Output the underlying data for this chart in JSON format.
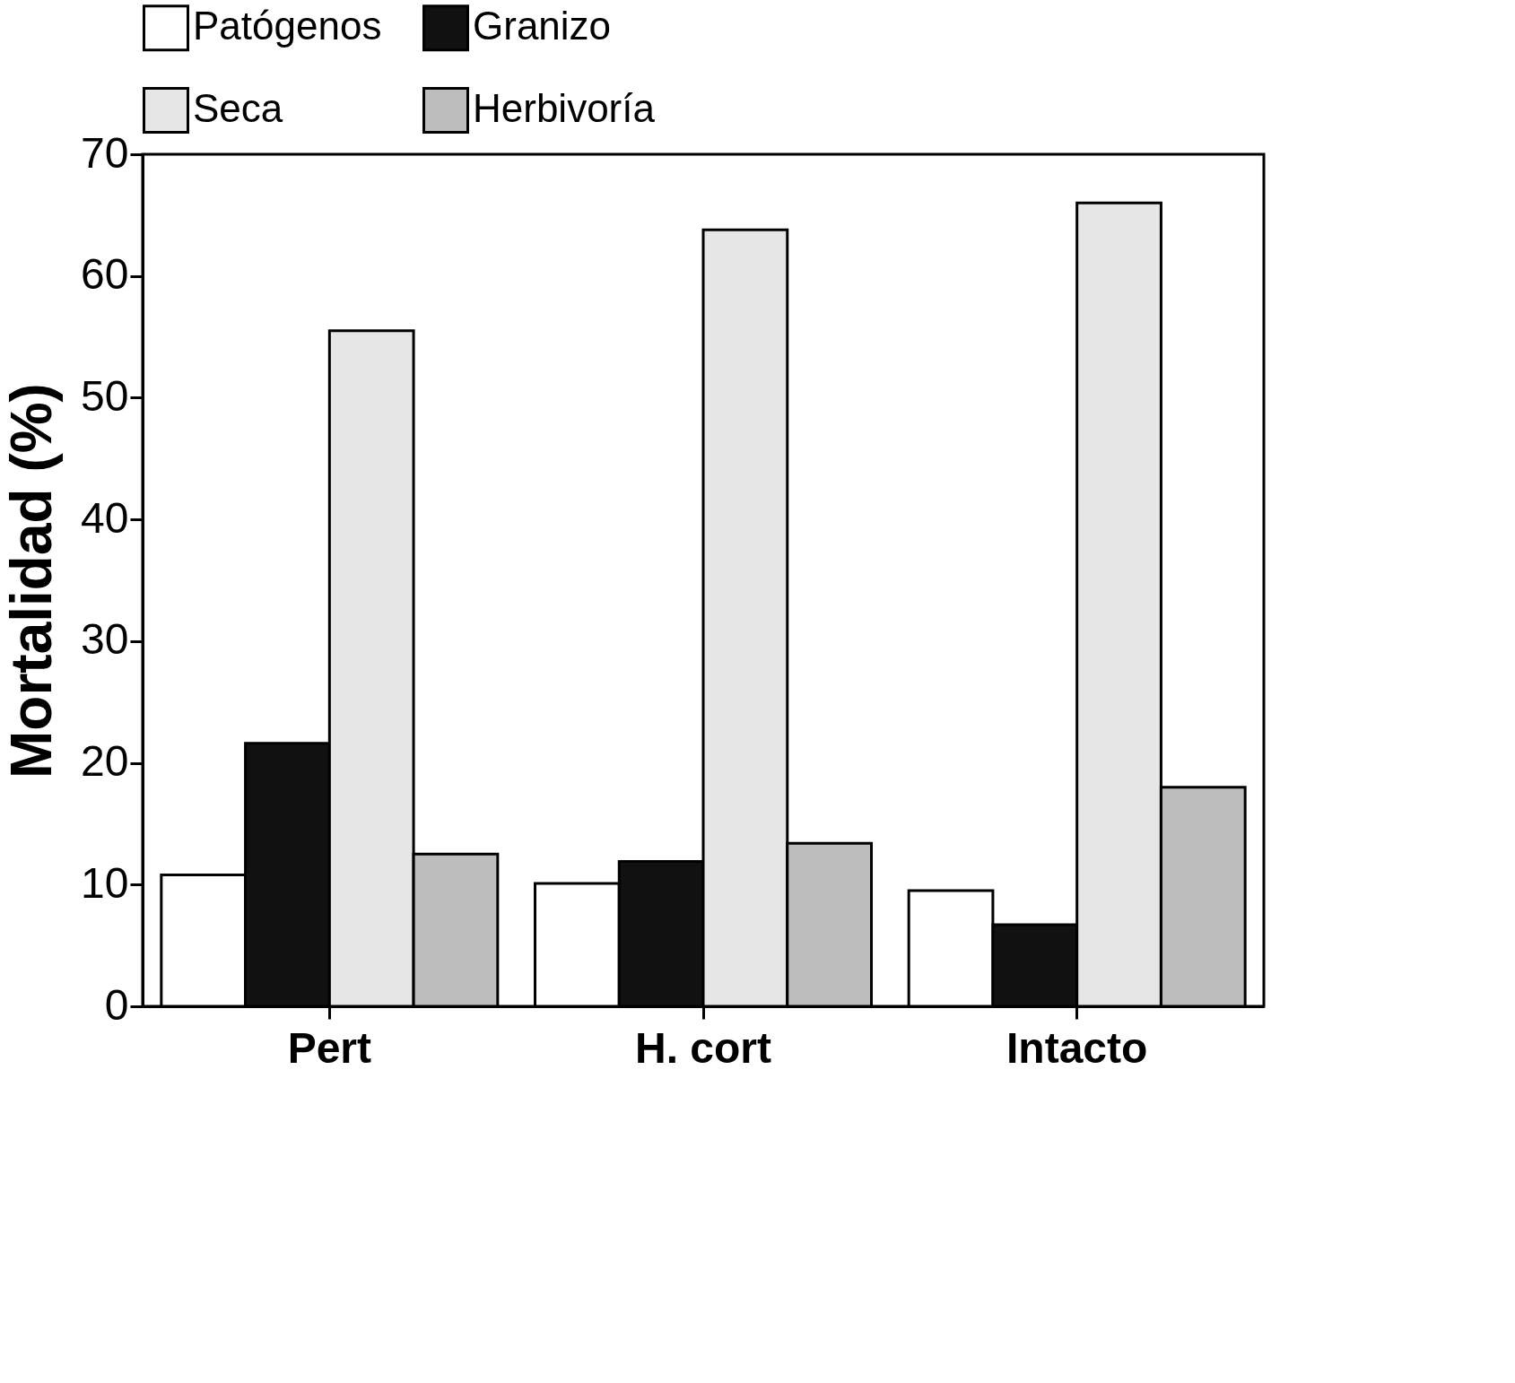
{
  "chart_data": {
    "type": "bar",
    "ylabel": "Mortalidad (%)",
    "categories": [
      "Pert",
      "H. cort",
      "Intacto"
    ],
    "series": [
      {
        "name": "Patógenos",
        "color": "#ffffff",
        "values": [
          10.8,
          10.1,
          9.5
        ]
      },
      {
        "name": "Granizo",
        "color": "#111111",
        "values": [
          21.6,
          11.9,
          6.7
        ]
      },
      {
        "name": "Seca",
        "color": "#e6e6e6",
        "values": [
          55.5,
          63.8,
          66.0
        ]
      },
      {
        "name": "Herbivoría",
        "color": "#bdbdbd",
        "values": [
          12.5,
          13.4,
          18.0
        ]
      }
    ],
    "ylim": [
      0,
      70
    ],
    "yticks": [
      0,
      10,
      20,
      30,
      40,
      50,
      60,
      70
    ],
    "grid": false,
    "legend": "top"
  }
}
